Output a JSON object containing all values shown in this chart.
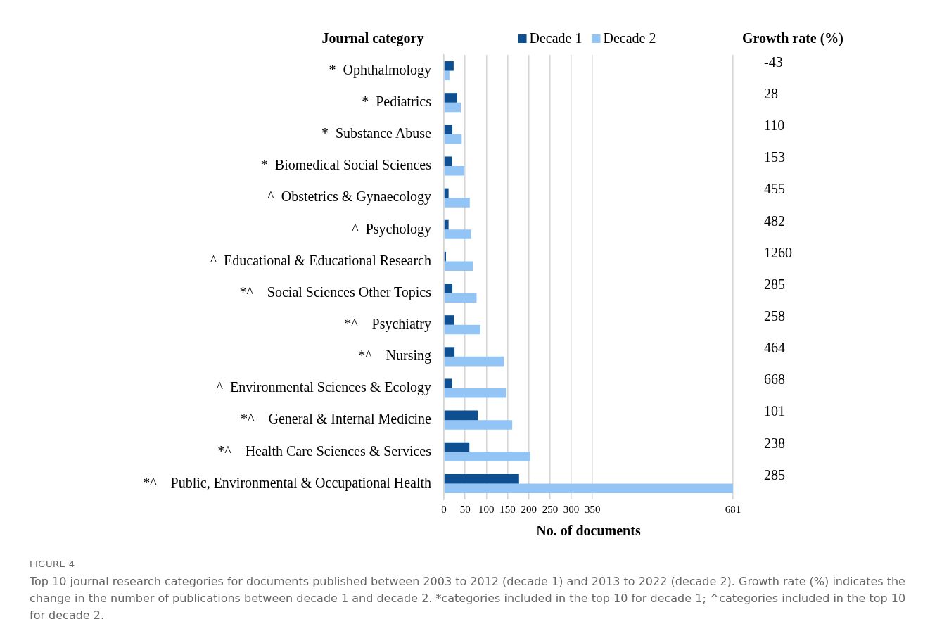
{
  "chart_data": {
    "type": "bar",
    "orientation": "horizontal",
    "title": "FIGURE 4",
    "subtitle": "Top 10 journal research categories for documents published between 2003 to 2012 (decade 1) and 2013 to 2022 (decade 2). Growth rate (%) indicates the change in the number of publications between decade 1 and decade 2. *categories included in the top 10 for decade 1; ^categories included in the top 10 for decade 2.",
    "ylabel": "Journal category",
    "xlabel": "No. of documents",
    "categories": [
      "*  Ophthalmology",
      "*  Pediatrics",
      "*  Substance Abuse",
      "*  Biomedical Social Sciences",
      "^  Obstetrics & Gynaecology",
      "^  Psychology",
      "^  Educational & Educational Research",
      "*^    Social Sciences Other Topics",
      "*^    Psychiatry",
      "*^    Nursing",
      "^  Environmental Sciences & Ecology",
      "*^    General & Internal Medicine",
      "*^    Health Care Sciences & Services",
      "*^    Public, Environmental & Occupational Health"
    ],
    "series": [
      {
        "name": "Decade 1",
        "color": "#0e4f91",
        "values": [
          23,
          31,
          20,
          19,
          11,
          11,
          5,
          20,
          24,
          25,
          19,
          80,
          60,
          177
        ]
      },
      {
        "name": "Decade 2",
        "color": "#92c5f5",
        "values": [
          13,
          40,
          42,
          48,
          61,
          64,
          68,
          77,
          86,
          141,
          146,
          161,
          203,
          681
        ]
      }
    ],
    "xlim": [
      0,
      681
    ],
    "xticks": [
      0,
      50,
      100,
      150,
      200,
      250,
      300,
      350,
      681
    ],
    "grid": "x",
    "legend": "top",
    "annotations": [
      "Growth rate (%)",
      "-43",
      "28",
      "110",
      "153",
      "455",
      "482",
      "1260",
      "285",
      "258",
      "464",
      "668",
      "101",
      "238",
      "285"
    ]
  }
}
